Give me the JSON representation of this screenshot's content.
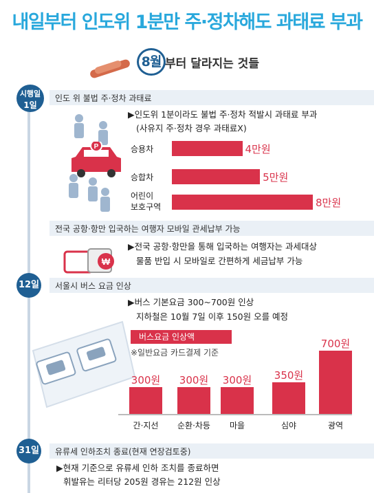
{
  "title": "내일부터 인도위 1분만 주·정차해도 과태료 부과",
  "subtitle": {
    "badge": "8월",
    "text": "부터 달라지는 것들"
  },
  "sections": [
    {
      "date_line1": "시행일",
      "date_line2": "1일",
      "header": "인도 위 불법 주·정차 과태료",
      "bullet_line1": "인도위 1분이라도 불법 주·정차 적발시 과태료 부과",
      "bullet_line2": "(사유지 주·정차 경우 과태료X)"
    },
    {
      "header": "전국 공항·항만 입국하는 여행자 모바일 관세납부 가능",
      "bullet_line1": "전국 공항·항만을 통해 입국하는 여행자는 과세대상",
      "bullet_line2": "물품 반입 시 모바일로 간편하게 세금납부 가능"
    },
    {
      "date": "12일",
      "header": "서울시 버스 요금 인상",
      "bullet_line1": "버스 기본요금 300~700원 인상",
      "bullet_line2": "지하철은 10월 7일 이후 150원 오를 예정"
    },
    {
      "date": "31일",
      "header": "유류세 인하조치 종료(현재 연장검토중)",
      "bullet_line1": "현재 기준으로 유류세 인하 조치를 종료하면",
      "bullet_line2": "휘발유는 리터당 205원 경유는 212원 인상"
    }
  ],
  "bullet_marker": "▶",
  "fine_chart": {
    "categories": [
      {
        "line1": "승용차",
        "line2": ""
      },
      {
        "line1": "승합차",
        "line2": ""
      },
      {
        "line1": "어린이",
        "line2": "보호구역"
      }
    ],
    "values": [
      4,
      5,
      8
    ],
    "labels": [
      "4만원",
      "5만원",
      "8만원"
    ],
    "max": 8
  },
  "chart_data": {
    "type": "bar",
    "title": "버스요금 인상액",
    "subtitle": "※일반요금 카드결제 기준",
    "categories": [
      "간·지선",
      "순환·차등",
      "마을",
      "심야",
      "광역"
    ],
    "values": [
      300,
      300,
      300,
      350,
      700
    ],
    "labels": [
      "300원",
      "300원",
      "300원",
      "350원",
      "700원"
    ],
    "unit": "원",
    "ylim": [
      0,
      700
    ]
  },
  "colors": {
    "accent": "#1f5f93",
    "bar": "#d9324a",
    "title": "#29a8dc"
  },
  "icons": [
    "magnifier-icon",
    "people-icon",
    "car-icon",
    "luggage-icon",
    "ticket-icon"
  ]
}
